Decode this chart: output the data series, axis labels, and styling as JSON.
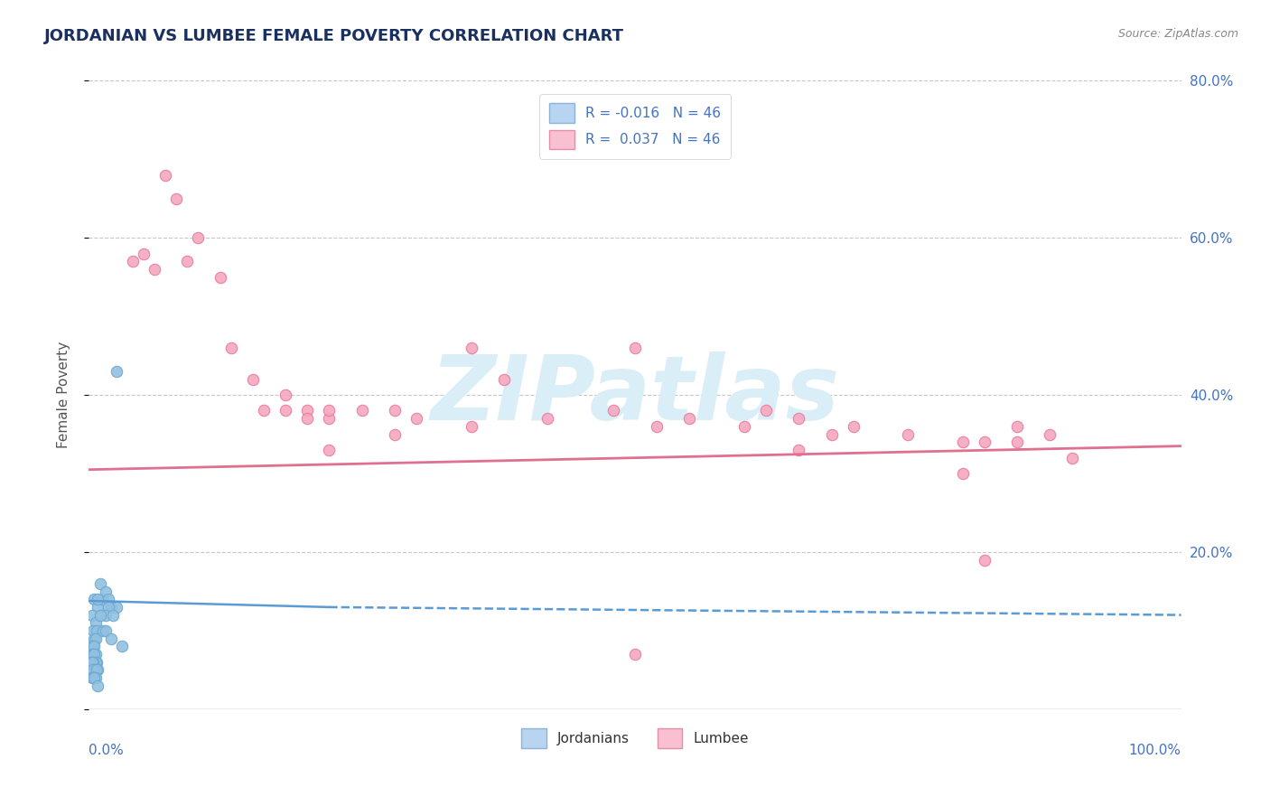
{
  "title": "JORDANIAN VS LUMBEE FEMALE POVERTY CORRELATION CHART",
  "source": "Source: ZipAtlas.com",
  "ylabel": "Female Poverty",
  "jordanian_x": [
    0.005,
    0.008,
    0.003,
    0.006,
    0.004,
    0.007,
    0.005,
    0.006,
    0.004,
    0.003,
    0.005,
    0.006,
    0.003,
    0.004,
    0.005,
    0.007,
    0.006,
    0.004,
    0.003,
    0.005,
    0.008,
    0.006,
    0.004,
    0.007,
    0.005,
    0.003,
    0.006,
    0.004,
    0.005,
    0.008,
    0.01,
    0.012,
    0.015,
    0.018,
    0.02,
    0.025,
    0.018,
    0.015,
    0.022,
    0.01,
    0.008,
    0.013,
    0.015,
    0.02,
    0.03,
    0.025
  ],
  "jordanian_y": [
    0.14,
    0.13,
    0.12,
    0.11,
    0.1,
    0.1,
    0.09,
    0.09,
    0.08,
    0.08,
    0.08,
    0.07,
    0.07,
    0.07,
    0.07,
    0.06,
    0.06,
    0.06,
    0.06,
    0.05,
    0.05,
    0.05,
    0.05,
    0.05,
    0.04,
    0.04,
    0.04,
    0.04,
    0.04,
    0.03,
    0.16,
    0.14,
    0.15,
    0.14,
    0.13,
    0.13,
    0.13,
    0.12,
    0.12,
    0.12,
    0.14,
    0.1,
    0.1,
    0.09,
    0.08,
    0.43
  ],
  "lumbee_x": [
    0.04,
    0.06,
    0.08,
    0.07,
    0.05,
    0.09,
    0.1,
    0.12,
    0.13,
    0.15,
    0.16,
    0.18,
    0.2,
    0.22,
    0.25,
    0.28,
    0.3,
    0.22,
    0.2,
    0.18,
    0.35,
    0.38,
    0.42,
    0.48,
    0.5,
    0.52,
    0.55,
    0.6,
    0.62,
    0.65,
    0.68,
    0.7,
    0.75,
    0.8,
    0.82,
    0.85,
    0.88,
    0.85,
    0.8,
    0.9,
    0.28,
    0.35,
    0.22,
    0.5,
    0.65,
    0.82
  ],
  "lumbee_y": [
    0.57,
    0.56,
    0.65,
    0.68,
    0.58,
    0.57,
    0.6,
    0.55,
    0.46,
    0.42,
    0.38,
    0.4,
    0.38,
    0.37,
    0.38,
    0.38,
    0.37,
    0.38,
    0.37,
    0.38,
    0.46,
    0.42,
    0.37,
    0.38,
    0.46,
    0.36,
    0.37,
    0.36,
    0.38,
    0.37,
    0.35,
    0.36,
    0.35,
    0.34,
    0.34,
    0.36,
    0.35,
    0.34,
    0.3,
    0.32,
    0.35,
    0.36,
    0.33,
    0.07,
    0.33,
    0.19
  ],
  "jordanian_line_x": [
    0.0,
    1.0
  ],
  "jordanian_line_y_start": 0.138,
  "jordanian_line_y_end": 0.12,
  "lumbee_line_x": [
    0.0,
    1.0
  ],
  "lumbee_line_y_start": 0.305,
  "lumbee_line_y_end": 0.335,
  "jordanian_color": "#92c0e0",
  "jordanian_edge": "#6aaad0",
  "lumbee_color": "#f5a8be",
  "lumbee_edge": "#e87aa0",
  "jordanian_line_color": "#5b9bd5",
  "lumbee_line_color": "#e07090",
  "background_color": "#ffffff",
  "grid_color": "#c8c8c8",
  "title_color": "#1a3060",
  "source_color": "#888888",
  "watermark_text": "ZIPatlas",
  "watermark_color": "#daeef8",
  "xlim": [
    0.0,
    1.0
  ],
  "ylim": [
    0.0,
    0.8
  ],
  "yticks": [
    0.0,
    0.2,
    0.4,
    0.6,
    0.8
  ],
  "right_ytick_labels": [
    "",
    "20.0%",
    "40.0%",
    "60.0%",
    "80.0%"
  ],
  "marker_size": 80,
  "title_fontsize": 13,
  "axis_label_fontsize": 11,
  "tick_fontsize": 11
}
